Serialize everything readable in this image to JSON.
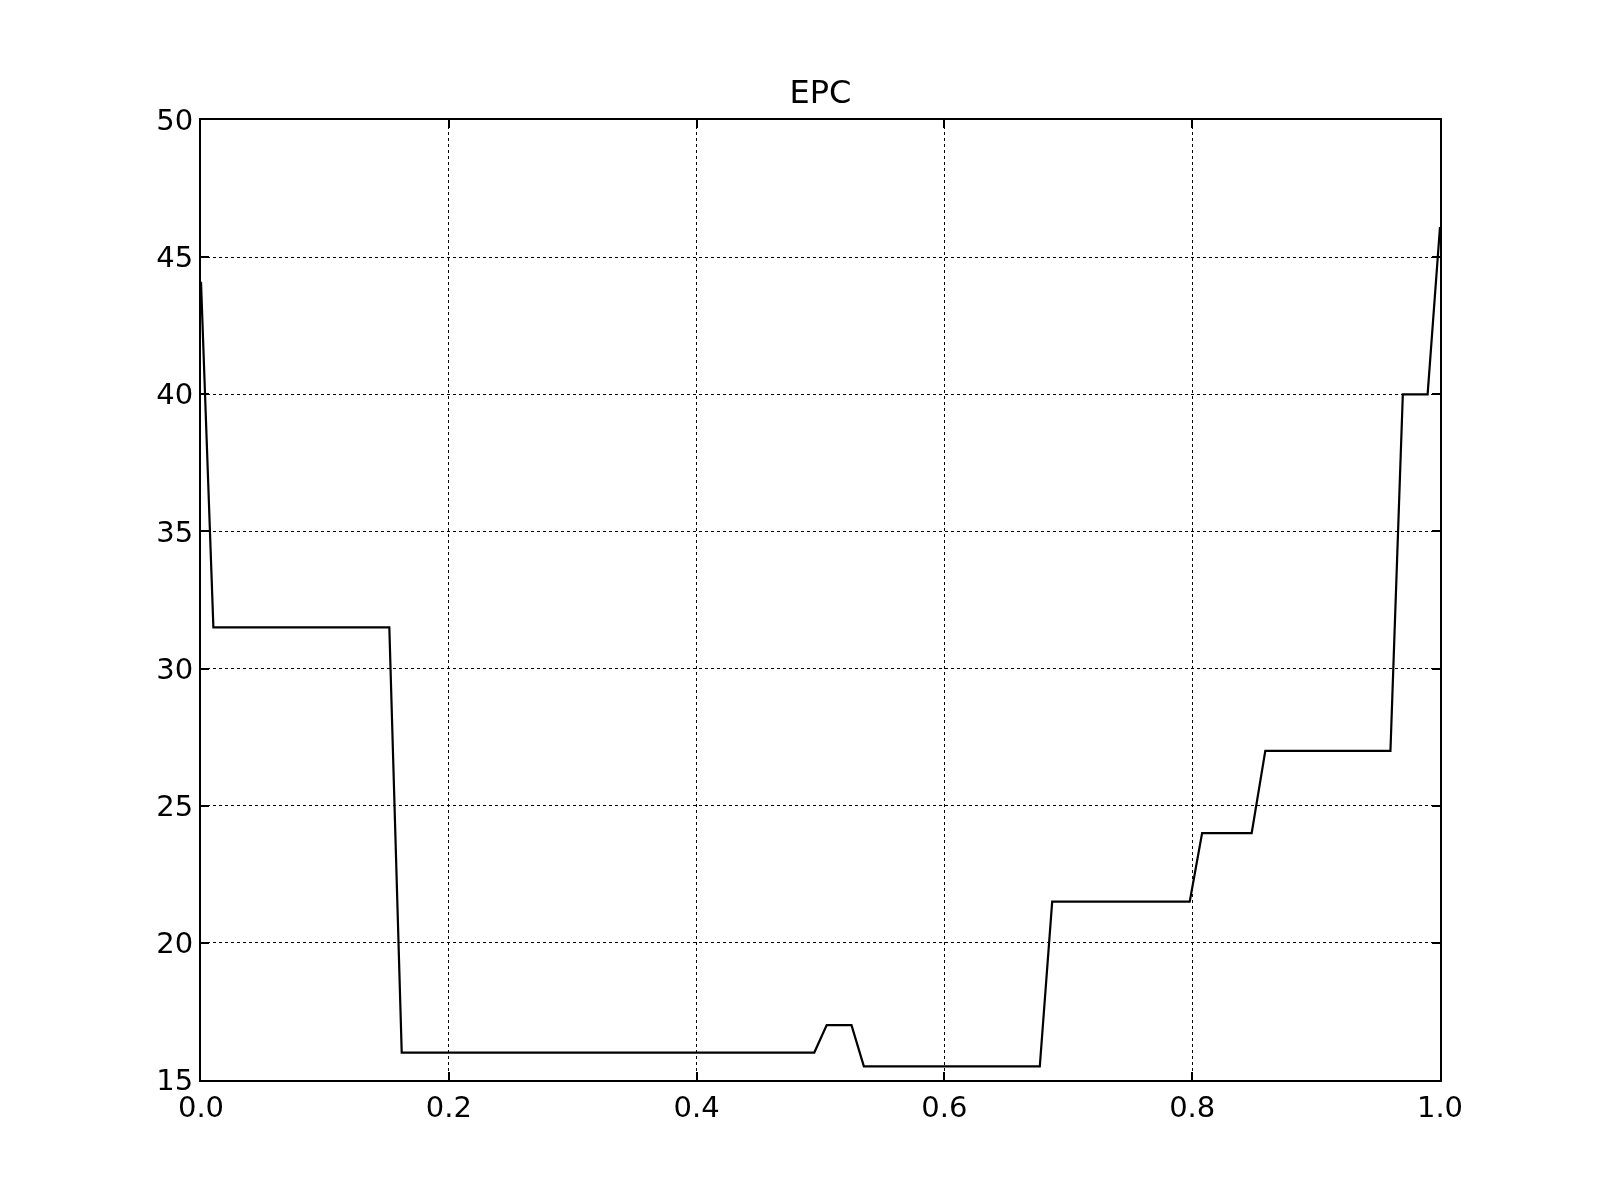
{
  "chart_data": {
    "type": "line",
    "title": "EPC",
    "x": [
      0,
      0.01,
      0.152,
      0.162,
      0.495,
      0.505,
      0.525,
      0.535,
      0.677,
      0.687,
      0.798,
      0.808,
      0.848,
      0.859,
      0.96,
      0.97,
      0.99,
      1.0
    ],
    "series": [
      {
        "color": "#000000",
        "values": [
          44.1,
          31.5,
          31.5,
          16,
          16,
          17,
          17,
          15.5,
          15.5,
          21.5,
          21.5,
          24,
          24,
          27,
          27,
          40,
          40,
          46.1
        ]
      }
    ],
    "xlim": [
      0,
      1
    ],
    "ylim": [
      15,
      50
    ],
    "xticks": [
      {
        "value": 0,
        "label": "0.0"
      },
      0.2,
      0.4,
      0.6,
      0.8,
      {
        "value": 1,
        "label": "1.0"
      }
    ],
    "yticks": [
      15,
      20,
      25,
      30,
      35,
      40,
      45,
      50
    ],
    "grid": true,
    "line_style": "solid",
    "marker": "none"
  }
}
